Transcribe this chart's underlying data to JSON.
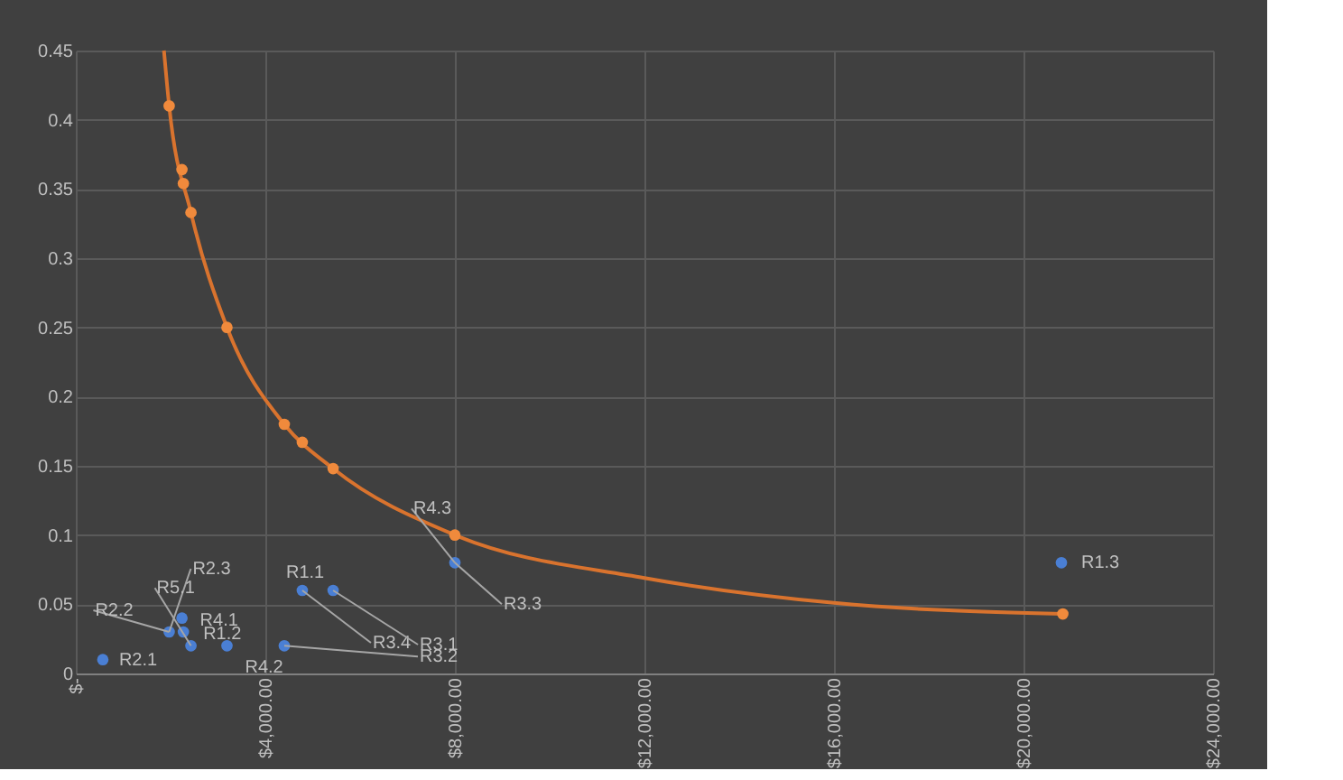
{
  "chart_data": {
    "type": "scatter",
    "xlim": [
      0,
      24000
    ],
    "ylim": [
      0,
      0.45
    ],
    "xticks": [
      {
        "value": 0,
        "label": "$-"
      },
      {
        "value": 4000,
        "label": "$4,000.00"
      },
      {
        "value": 8000,
        "label": "$8,000.00"
      },
      {
        "value": 12000,
        "label": "$12,000.00"
      },
      {
        "value": 16000,
        "label": "$16,000.00"
      },
      {
        "value": 20000,
        "label": "$20,000.00"
      },
      {
        "value": 24000,
        "label": "$24,000.00"
      }
    ],
    "yticks": [
      0,
      0.05,
      0.1,
      0.15,
      0.2,
      0.25,
      0.3,
      0.35,
      0.4,
      0.45
    ],
    "grid": true,
    "series": [
      {
        "type": "line",
        "color": "#d9732e",
        "marker": "none",
        "x": [
          1860,
          1970,
          2430,
          3190,
          4400,
          5430,
          8000,
          12000,
          16000,
          20830
        ],
        "values": [
          0.45,
          0.41,
          0.333,
          0.25,
          0.18,
          0.148,
          0.1,
          0.069,
          0.051,
          0.043
        ]
      },
      {
        "color": "#f08a3c",
        "marker": "circle",
        "x": [
          1970,
          2240,
          2270,
          2430,
          3190,
          4400,
          4780,
          5430,
          8000,
          20830
        ],
        "values": [
          0.41,
          0.364,
          0.354,
          0.333,
          0.25,
          0.18,
          0.167,
          0.148,
          0.1,
          0.043
        ]
      },
      {
        "color": "#4a7fd4",
        "marker": "circle",
        "x": [
          570,
          1970,
          2240,
          2270,
          2430,
          3190,
          4400,
          4780,
          5430,
          8000,
          20800
        ],
        "values": [
          0.01,
          0.03,
          0.04,
          0.03,
          0.02,
          0.02,
          0.02,
          0.06,
          0.06,
          0.08,
          0.08
        ]
      }
    ],
    "annotations": [
      {
        "text": "R2.1",
        "x": 570,
        "y": 0.01
      },
      {
        "text": "R2.2",
        "x": 1970,
        "y": 0.03
      },
      {
        "text": "R2.3",
        "x": 1970,
        "y": 0.03
      },
      {
        "text": "R5.1",
        "x": 2430,
        "y": 0.02
      },
      {
        "text": "R4.1",
        "x": 2240,
        "y": 0.04
      },
      {
        "text": "R1.2",
        "x": 2270,
        "y": 0.03
      },
      {
        "text": "R4.2",
        "x": 3190,
        "y": 0.02
      },
      {
        "text": "R1.1",
        "x": 4780,
        "y": 0.06
      },
      {
        "text": "R3.4",
        "x": 4780,
        "y": 0.06
      },
      {
        "text": "R3.1",
        "x": 5430,
        "y": 0.06
      },
      {
        "text": "R3.2",
        "x": 4400,
        "y": 0.02
      },
      {
        "text": "R3.3",
        "x": 8000,
        "y": 0.08
      },
      {
        "text": "R4.3",
        "x": 8000,
        "y": 0.08
      },
      {
        "text": "R1.3",
        "x": 20800,
        "y": 0.08
      }
    ]
  }
}
